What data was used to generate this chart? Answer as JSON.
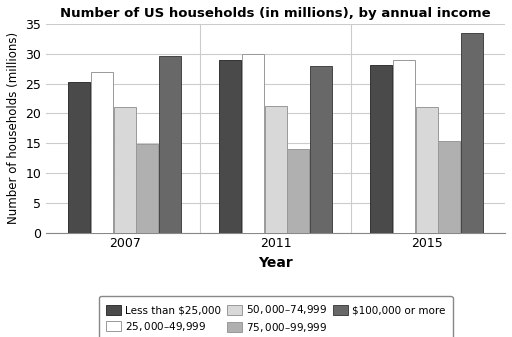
{
  "title": "Number of US households (in millions), by annual income",
  "xlabel": "Year",
  "ylabel": "Number of households (millions)",
  "years": [
    "2007",
    "2011",
    "2015"
  ],
  "categories": [
    "Less than $25,000",
    "$25,000–$49,999",
    "$50,000–$74,999",
    "$75,000–$99,999",
    "$100,000 or more"
  ],
  "values": {
    "Less than $25,000": [
      25.3,
      29.0,
      28.1
    ],
    "$25,000–$49,999": [
      27.0,
      30.0,
      29.0
    ],
    "$50,000–$74,999": [
      21.0,
      21.2,
      21.0
    ],
    "$75,000–$99,999": [
      14.8,
      14.0,
      15.3
    ],
    "$100,000 or more": [
      29.6,
      28.0,
      33.5
    ]
  },
  "colors": [
    "#4a4a4a",
    "#ffffff",
    "#d8d8d8",
    "#b0b0b0",
    "#686868"
  ],
  "bar_edge_colors": [
    "#333333",
    "#999999",
    "#999999",
    "#999999",
    "#444444"
  ],
  "ylim": [
    0,
    35
  ],
  "yticks": [
    0,
    5,
    10,
    15,
    20,
    25,
    30,
    35
  ],
  "background_color": "#ffffff",
  "grid_color": "#cccccc",
  "legend_fontsize": 7.5,
  "legend_ncol": 3
}
